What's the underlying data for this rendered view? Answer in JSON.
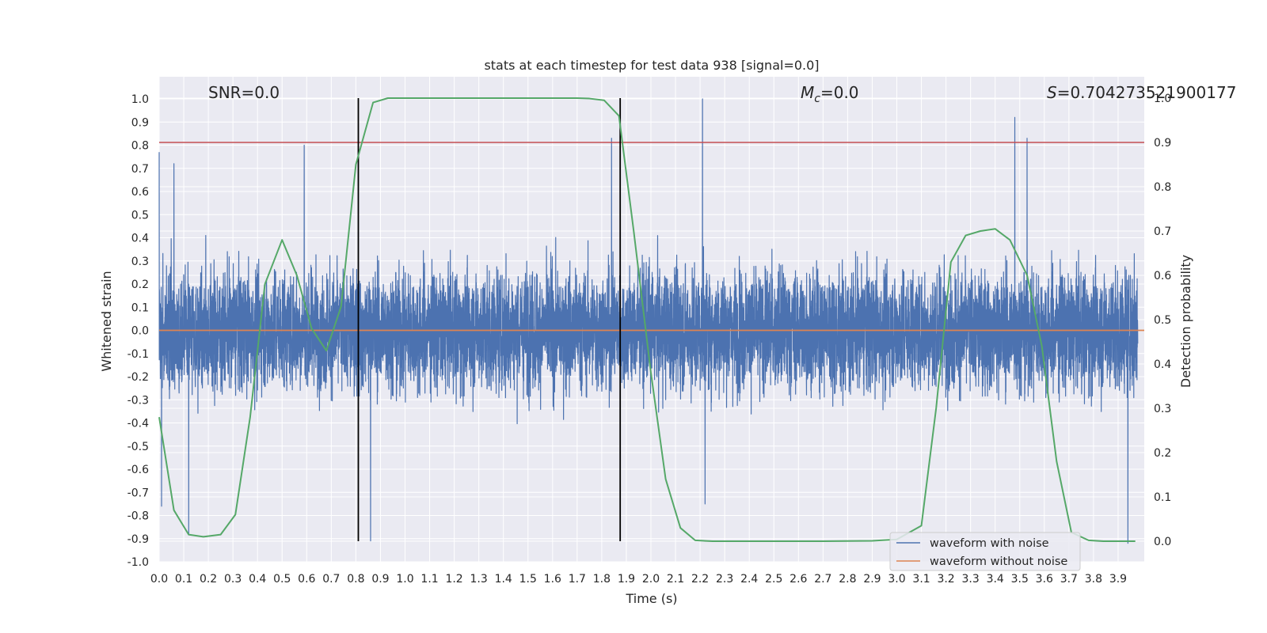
{
  "chart_data": {
    "type": "line",
    "title": "stats at each timestep for test data 938 [signal=0.0]",
    "xlabel": "Time (s)",
    "ylabel": "Whitened strain",
    "y2label": "Detection probability",
    "xlim": [
      0.0,
      4.0
    ],
    "ylim": [
      -1.0,
      1.1
    ],
    "y2lim": [
      -0.05,
      1.05
    ],
    "xticks": [
      "0.0",
      "0.1",
      "0.2",
      "0.3",
      "0.4",
      "0.5",
      "0.6",
      "0.7",
      "0.8",
      "0.9",
      "1.0",
      "1.1",
      "1.2",
      "1.3",
      "1.4",
      "1.5",
      "1.6",
      "1.7",
      "1.8",
      "1.9",
      "2.0",
      "2.1",
      "2.2",
      "2.3",
      "2.4",
      "2.5",
      "2.6",
      "2.7",
      "2.8",
      "2.9",
      "3.0",
      "3.1",
      "3.2",
      "3.3",
      "3.4",
      "3.5",
      "3.6",
      "3.7",
      "3.8",
      "3.9"
    ],
    "yticks": [
      "1.0",
      "0.9",
      "0.8",
      "0.7",
      "0.6",
      "0.5",
      "0.4",
      "0.3",
      "0.2",
      "0.1",
      "0.0",
      "-0.1",
      "-0.2",
      "-0.3",
      "-0.4",
      "-0.5",
      "-0.6",
      "-0.7",
      "-0.8",
      "-0.9",
      "-1.0"
    ],
    "y2ticks": [
      "1.0",
      "0.9",
      "0.8",
      "0.7",
      "0.6",
      "0.5",
      "0.4",
      "0.3",
      "0.2",
      "0.1",
      "0.0"
    ],
    "grid": true,
    "annotations": {
      "snr": "SNR=0.0",
      "mc_symbol": "M",
      "mc_sub": "c",
      "mc_value": "=0.0",
      "s_symbol": "S",
      "s_value": "=0.704273521900177"
    },
    "threshold_line": {
      "axis": "y2",
      "value": 0.9,
      "color": "#c44e52"
    },
    "vertical_lines": [
      0.81,
      1.875
    ],
    "series": [
      {
        "name": "waveform with noise",
        "color": "#4c72b0",
        "axis": "y",
        "kind": "noise",
        "sample_rate": 2048,
        "spread": 0.18,
        "extremes": [
          [
            0.0,
            0.77
          ],
          [
            0.01,
            -0.76
          ],
          [
            0.06,
            0.72
          ],
          [
            0.12,
            -0.88
          ],
          [
            0.59,
            0.8
          ],
          [
            0.86,
            -0.91
          ],
          [
            1.84,
            0.83
          ],
          [
            2.21,
            1.0
          ],
          [
            2.22,
            -0.75
          ],
          [
            3.48,
            0.92
          ],
          [
            3.53,
            0.83
          ],
          [
            3.94,
            -0.92
          ]
        ]
      },
      {
        "name": "waveform without noise",
        "color": "#dd8452",
        "axis": "y",
        "kind": "flat",
        "value": 0.0
      },
      {
        "name": "detection probability",
        "color": "#55a868",
        "axis": "y2",
        "x": [
          0.0,
          0.06,
          0.12,
          0.18,
          0.25,
          0.31,
          0.37,
          0.43,
          0.5,
          0.56,
          0.62,
          0.68,
          0.74,
          0.8,
          0.87,
          0.93,
          1.0,
          1.1,
          1.2,
          1.3,
          1.4,
          1.5,
          1.6,
          1.7,
          1.75,
          1.81,
          1.87,
          1.93,
          2.0,
          2.06,
          2.12,
          2.18,
          2.25,
          2.3,
          2.5,
          2.7,
          2.9,
          3.0,
          3.1,
          3.16,
          3.22,
          3.28,
          3.34,
          3.4,
          3.46,
          3.53,
          3.59,
          3.65,
          3.71,
          3.78,
          3.84,
          3.9,
          3.97
        ],
        "y": [
          0.28,
          0.07,
          0.015,
          0.01,
          0.015,
          0.06,
          0.28,
          0.58,
          0.68,
          0.6,
          0.48,
          0.43,
          0.53,
          0.85,
          0.99,
          1.0,
          1.0,
          1.0,
          1.0,
          1.0,
          1.0,
          1.0,
          1.0,
          1.0,
          0.999,
          0.995,
          0.96,
          0.7,
          0.38,
          0.14,
          0.03,
          0.002,
          0.0,
          0.0,
          0.0,
          0.0,
          0.001,
          0.004,
          0.035,
          0.3,
          0.63,
          0.69,
          0.7,
          0.705,
          0.68,
          0.6,
          0.44,
          0.18,
          0.02,
          0.002,
          0.0,
          0.0,
          0.0
        ]
      }
    ],
    "legend": {
      "placement": "lower-right",
      "entries": [
        {
          "label": "waveform with noise",
          "color": "#4c72b0"
        },
        {
          "label": "waveform without noise",
          "color": "#dd8452"
        }
      ]
    }
  }
}
